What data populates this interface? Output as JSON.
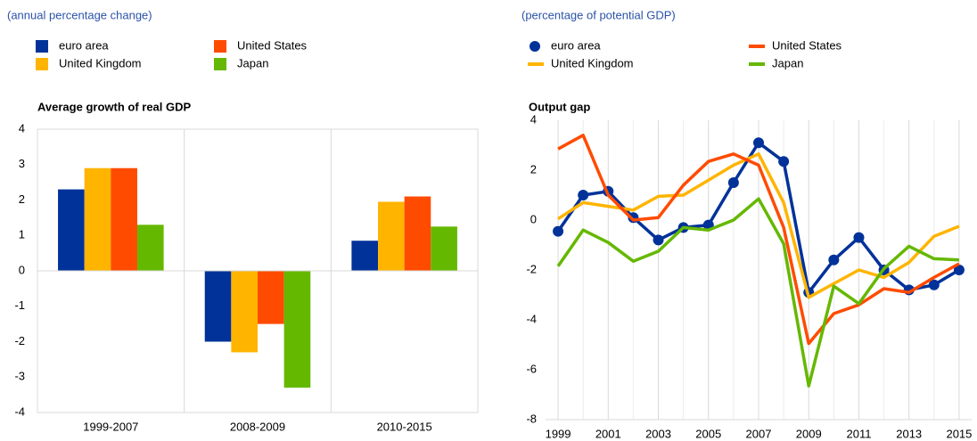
{
  "chart_data": [
    {
      "type": "bar",
      "subtitle": "(annual percentage change)",
      "title": "Average growth of real GDP",
      "categories": [
        "1999-2007",
        "2008-2009",
        "2010-2015"
      ],
      "series": [
        {
          "name": "euro area",
          "color": "#003299",
          "values": [
            2.3,
            -2.0,
            0.85
          ]
        },
        {
          "name": "United Kingdom",
          "color": "#FFB400",
          "values": [
            2.9,
            -2.3,
            1.95
          ]
        },
        {
          "name": "United States",
          "color": "#FF4B00",
          "values": [
            2.9,
            -1.5,
            2.1
          ]
        },
        {
          "name": "Japan",
          "color": "#65B800",
          "values": [
            1.3,
            -3.3,
            1.25
          ]
        }
      ],
      "ylim": [
        -4,
        4
      ],
      "yticks": [
        -4,
        -3,
        -2,
        -1,
        0,
        1,
        2,
        3,
        4
      ]
    },
    {
      "type": "line",
      "subtitle": "(percentage of potential GDP)",
      "title": "Output gap",
      "x": [
        1999,
        2000,
        2001,
        2002,
        2003,
        2004,
        2005,
        2006,
        2007,
        2008,
        2009,
        2010,
        2011,
        2012,
        2013,
        2014,
        2015
      ],
      "series": [
        {
          "name": "euro area",
          "color": "#003299",
          "markers": true,
          "values": [
            -0.45,
            1.0,
            1.15,
            0.1,
            -0.8,
            -0.3,
            -0.2,
            1.5,
            3.1,
            2.35,
            -2.9,
            -1.6,
            -0.7,
            -2.0,
            -2.8,
            -2.6,
            -2.0
          ]
        },
        {
          "name": "United Kingdom",
          "color": "#FFB400",
          "values": [
            0.05,
            0.7,
            0.55,
            0.4,
            0.95,
            1.0,
            1.6,
            2.2,
            2.65,
            0.7,
            -3.1,
            -2.55,
            -2.0,
            -2.3,
            -1.7,
            -0.65,
            -0.25
          ]
        },
        {
          "name": "United States",
          "color": "#FF4B00",
          "values": [
            2.85,
            3.4,
            1.0,
            0.0,
            0.1,
            1.4,
            2.35,
            2.65,
            2.2,
            -0.3,
            -4.95,
            -3.75,
            -3.4,
            -2.75,
            -2.9,
            -2.3,
            -1.75
          ]
        },
        {
          "name": "Japan",
          "color": "#65B800",
          "values": [
            -1.85,
            -0.4,
            -0.9,
            -1.65,
            -1.25,
            -0.3,
            -0.4,
            0.0,
            0.85,
            -0.95,
            -6.65,
            -2.65,
            -3.35,
            -1.95,
            -1.05,
            -1.55,
            -1.6
          ]
        }
      ],
      "xlim": [
        1998.5,
        2015.5
      ],
      "xticks": [
        1999,
        2001,
        2003,
        2005,
        2007,
        2009,
        2011,
        2013,
        2015
      ],
      "ylim": [
        -8,
        4
      ],
      "yticks": [
        -8,
        -6,
        -4,
        -2,
        0,
        2,
        4
      ],
      "grid": true
    }
  ]
}
